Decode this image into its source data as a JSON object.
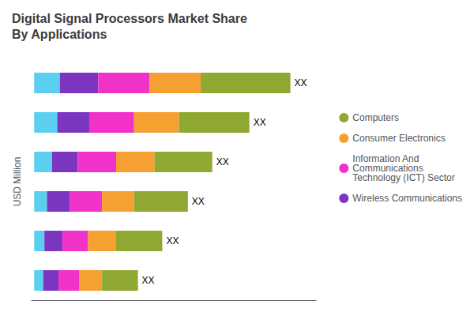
{
  "chart_data": {
    "type": "bar",
    "orientation": "horizontal",
    "stacked": true,
    "title": "Digital Signal Processors Market Share\nBy Applications",
    "ylabel": "USD Million",
    "categories": [
      null,
      null,
      null,
      null,
      null,
      null
    ],
    "series": [
      {
        "color": "#5BCFEF",
        "values": [
          2.0,
          1.8,
          1.4,
          1.0,
          0.8,
          0.7
        ]
      },
      {
        "name": "Wireless Communications",
        "color": "#7B35C1",
        "values": [
          3.0,
          2.5,
          2.0,
          1.8,
          1.4,
          1.2
        ]
      },
      {
        "name": "Information And\nCommunications\nTechnology (ICT) Sector",
        "color": "#F032C8",
        "values": [
          4.0,
          3.5,
          3.0,
          2.5,
          2.0,
          1.6
        ]
      },
      {
        "name": "Consumer Electronics",
        "color": "#F5A030",
        "values": [
          4.0,
          3.5,
          3.0,
          2.5,
          2.2,
          1.8
        ]
      },
      {
        "name": "Computers",
        "color": "#8FA832",
        "values": [
          7.0,
          5.5,
          4.5,
          4.2,
          3.6,
          2.8
        ]
      }
    ],
    "annotations": [
      "XX",
      "XX",
      "XX",
      "XX",
      "XX",
      "XX"
    ],
    "xlim": [
      -0.2,
      22
    ],
    "tick_labels": false,
    "grid": false,
    "legend": "right"
  }
}
